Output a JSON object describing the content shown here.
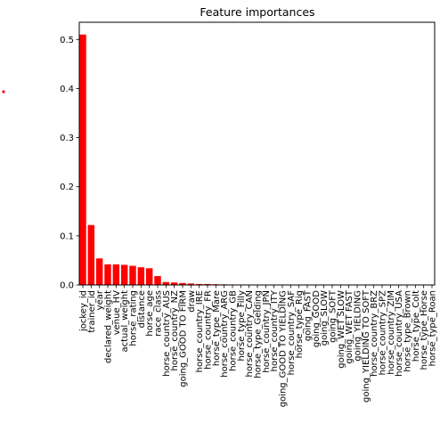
{
  "chart_data": {
    "type": "bar",
    "title": "Feature importances",
    "xlabel": "",
    "ylabel": "",
    "ylim": [
      0,
      0.535
    ],
    "yticks": [
      0.0,
      0.1,
      0.2,
      0.3,
      0.4,
      0.5
    ],
    "ytick_labels": [
      "0.0",
      "0.1",
      "0.2",
      "0.3",
      "0.4",
      "0.5"
    ],
    "bar_color": "#ff0000",
    "grid": false,
    "legend": "none",
    "categories": [
      "jockey_id",
      "trainer_id",
      "year",
      "declared_weight",
      "venue_HV",
      "actual_weight",
      "horse_rating",
      "distance",
      "horse_age",
      "race_class",
      "horse_country_AUS",
      "horse_country_NZ",
      "going_GOOD TO FIRM",
      "draw",
      "horse_country_IRE",
      "horse_country_FR",
      "horse_type_Mare",
      "horse_country_ARG",
      "horse_country_GB",
      "horse_type_Filly",
      "horse_country_CAN",
      "horse_type_Gelding",
      "horse_country_JPN",
      "horse_country_ITY",
      "going_GOOD TO YIELDING",
      "horse_country_SAF",
      "horse_type_Rig",
      "going_FAST",
      "going_GOOD",
      "going_SLOW",
      "going_SOFT",
      "going_WET SLOW",
      "going_WET FAST",
      "going_YIELDING",
      "going_YIELDING TO SOFT",
      "horse_country_BRZ",
      "horse_country_SPZ",
      "horse_country_ZIM",
      "horse_country_USA",
      "horse_type_Brown",
      "horse_type_Colt",
      "horse_type_Horse",
      "horse_type_Roan"
    ],
    "values": [
      0.51,
      0.122,
      0.054,
      0.042,
      0.042,
      0.041,
      0.039,
      0.036,
      0.034,
      0.018,
      0.006,
      0.005,
      0.004,
      0.003,
      0.002,
      0.002,
      0.0015,
      0.0012,
      0.001,
      0.0008,
      0.0006,
      0.0004,
      0.0003,
      0.0002,
      0.0001,
      0.0001,
      0,
      0,
      0,
      0,
      0,
      0,
      0,
      0,
      0,
      0,
      0,
      0,
      0,
      0,
      0,
      0,
      0
    ]
  }
}
